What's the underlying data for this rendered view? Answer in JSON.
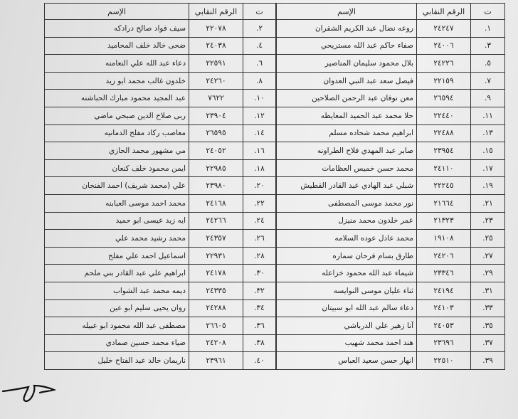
{
  "tables": [
    {
      "header": [
        "ت",
        "الرقم النقابي",
        "الإسم"
      ],
      "rows": [
        [
          "١.",
          "٢٤٢٤٧",
          "روعه نضال عبد الكريم الشقران"
        ],
        [
          "٣.",
          "٢٤٠٠٦",
          "صفاء حاكم عبد الله مستريحي"
        ],
        [
          "٥.",
          "٢٤٢٢٦",
          "بلال محمود سليمان المناصير"
        ],
        [
          "٧.",
          "٢٢١٥٩",
          "فيصل سعد عبد النبي العدوان"
        ],
        [
          "٩.",
          "٢٦٥٩٤",
          "معن نوفان عبد الرحمن الصلاحين"
        ],
        [
          "١١.",
          "٢٢٤٤٠",
          "حلا محمد عبد الحميد المعايطه"
        ],
        [
          "١٣.",
          "٢٢٤٨٨",
          "ابراهيم محمد شحاده مسلم"
        ],
        [
          "١٥.",
          "٢٣٩٥٤",
          "صابر عبد المهدي فلاح الطراونه"
        ],
        [
          "١٧.",
          "٢٤١١٠",
          "محمد حسن خميس العظامات"
        ],
        [
          "١٩.",
          "٢٢٢٤٥",
          "شبلي عبد الهادي عبد القادر القطيش"
        ],
        [
          "٢١.",
          "٢١٦٦٤",
          "نور محمد موسى المصطفى"
        ],
        [
          "٢٣.",
          "٢١٣٢٣",
          "عمر خلدون محمد منيزل"
        ],
        [
          "٢٥.",
          "١٩١٠٨",
          "محمد عادل عوده السلامه"
        ],
        [
          "٢٧.",
          "٢٤٢٠٦",
          "طارق بسام فرحان سماره"
        ],
        [
          "٢٩.",
          "٢٣٣٤٦",
          "شيماء عبد الله محمود خزاعله"
        ],
        [
          "٣١.",
          "٢٤١٩٤",
          "ثناء عليان موسى النوايسه"
        ],
        [
          "٣٣.",
          "٢٤١٠٣",
          "دعاء سالم عبد الله ابو سبيتان"
        ],
        [
          "٣٥.",
          "٢٤٠٥٣",
          "آنا زهير علي الدرباشي"
        ],
        [
          "٣٧.",
          "٢٣٦٩٦",
          "هند احمد محمد شهيب"
        ],
        [
          "٣٩.",
          "٢٢٥١٠",
          "انهار حسن سعيد العباس"
        ]
      ]
    },
    {
      "header": [
        "ت",
        "الرقم النقابي",
        "الإسم"
      ],
      "rows": [
        [
          "٢.",
          "٢٢٠٧٨",
          "سيف فواد صالح درادكه"
        ],
        [
          "٤.",
          "٢٤٠٣٨",
          "ضحى خالد خلف المحاميد"
        ],
        [
          "٦.",
          "٢٢٥٩١",
          "دعاء عبد الله علي النعامنه"
        ],
        [
          "٨.",
          "٢٤٢٦٠",
          "خلدون غالب محمد ابو زيد"
        ],
        [
          "١٠.",
          "٧٦٢٢",
          "عبد المجيد محمود مبارك الحباشنه"
        ],
        [
          "١٢.",
          "٢٣٩٠٤",
          "ربى صلاح الدين صبحي ماضي"
        ],
        [
          "١٤.",
          "٢٦٥٩٥",
          "معاصب ركاد مفلح الدمانيه"
        ],
        [
          "١٦.",
          "٢٤٠٥٢",
          "مي مشهور محمد الحازي"
        ],
        [
          "١٨.",
          "٢٢٩٨٥",
          "ايمن محمود خلف كنعان"
        ],
        [
          "٢٠.",
          "٢٣٩٨٠",
          "علي (محمد شريف) احمد الفنجان"
        ],
        [
          "٢٢.",
          "٢٤١٦٨",
          "محمد احمد موسى العبابنه"
        ],
        [
          "٢٤.",
          "٢٤٢٦٦",
          "ايه زيد عيسى ابو حميد"
        ],
        [
          "٢٦.",
          "٢٤٣٥٧",
          "محمد رشيد محمد علي"
        ],
        [
          "٢٨.",
          "٢٢٩٣١",
          "اسماعيل احمد علي مفلح"
        ],
        [
          "٣٠.",
          "٢٤١٧٨",
          "ابراهيم علي عبد القادر بني ملحم"
        ],
        [
          "٣٢.",
          "٢٤٣٣٥",
          "ديمه محمد عبد الشواب"
        ],
        [
          "٣٤.",
          "٢٤٢٨٨",
          "روان يحيى سليم ابو عين"
        ],
        [
          "٣٦.",
          "٢٦٦٠٥",
          "مصطفى عبد الله محمود ابو عبيله"
        ],
        [
          "٣٨.",
          "٢٤٢٠٨",
          "ضياء محمد حسين صمادي"
        ],
        [
          "٤٠.",
          "٢٣٩٦١",
          "ناريمان خالد عبد الفتاح خليل"
        ]
      ]
    }
  ]
}
